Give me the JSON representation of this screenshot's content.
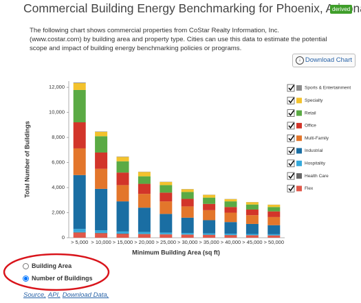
{
  "header": {
    "title": "Commercial Building Energy Benchmarking for Phoenix, Arizona",
    "badge": "derived"
  },
  "description": "The following chart shows commercial properties from CoStar Realty Information, Inc. (www.costar.com) by building area and property type. Cities can use this data to estimate the potential scope and impact of building energy benchmarking policies or programs.",
  "download_button": "Download Chart",
  "chart_data": {
    "type": "stacked_bar",
    "xlabel": "Minimum Building Area (sq ft)",
    "ylabel": "Total Number of Buildings",
    "categories": [
      "> 5,000",
      "> 10,000",
      "> 15,000",
      "> 20,000",
      "> 25,000",
      "> 30,000",
      "> 35,000",
      "> 40,000",
      "> 45,000",
      "> 50,000"
    ],
    "ylim": [
      0,
      12500
    ],
    "yticks": [
      0,
      {
        "value": 2000,
        "label": "2,000"
      },
      {
        "value": 4000,
        "label": "4,000"
      },
      {
        "value": 6000,
        "label": "6,000"
      },
      {
        "value": 8000,
        "label": "8,000"
      },
      {
        "value": 10000,
        "label": "10,000"
      },
      {
        "value": 12000,
        "label": "12,000"
      }
    ],
    "grid": false,
    "legend": "right",
    "series": [
      {
        "name": "Flex",
        "color": "#e0584a",
        "values": [
          400,
          350,
          300,
          280,
          260,
          240,
          220,
          200,
          190,
          180
        ]
      },
      {
        "name": "Health Care",
        "color": "#666666",
        "values": [
          50,
          40,
          30,
          30,
          25,
          20,
          20,
          20,
          15,
          15
        ]
      },
      {
        "name": "Hospitality",
        "color": "#35a9db",
        "values": [
          250,
          200,
          170,
          150,
          130,
          120,
          110,
          100,
          95,
          85
        ]
      },
      {
        "name": "Industrial",
        "color": "#1a6ea3",
        "values": [
          4300,
          3310,
          2400,
          1940,
          1485,
          1220,
          1050,
          930,
          800,
          720
        ]
      },
      {
        "name": "Multi-Family",
        "color": "#e3762b",
        "values": [
          2130,
          1600,
          1300,
          1100,
          1000,
          900,
          800,
          750,
          700,
          650
        ]
      },
      {
        "name": "Office",
        "color": "#d2352a",
        "values": [
          2080,
          1300,
          1000,
          800,
          700,
          600,
          500,
          450,
          450,
          450
        ]
      },
      {
        "name": "Retail",
        "color": "#5aaa44",
        "values": [
          2580,
          1300,
          900,
          600,
          600,
          550,
          500,
          450,
          400,
          350
        ]
      },
      {
        "name": "Specialty",
        "color": "#f3c22c",
        "values": [
          550,
          350,
          350,
          350,
          250,
          220,
          220,
          180,
          190,
          180
        ]
      },
      {
        "name": "Sports & Entertainment",
        "color": "#8c8c8c",
        "values": [
          50,
          30,
          30,
          20,
          20,
          15,
          15,
          15,
          10,
          10
        ]
      }
    ]
  },
  "radio_options": [
    "Building Area",
    "Number of Buildings"
  ],
  "selected_option": 1,
  "links": [
    "Source,",
    "API,",
    "Download Data,"
  ]
}
